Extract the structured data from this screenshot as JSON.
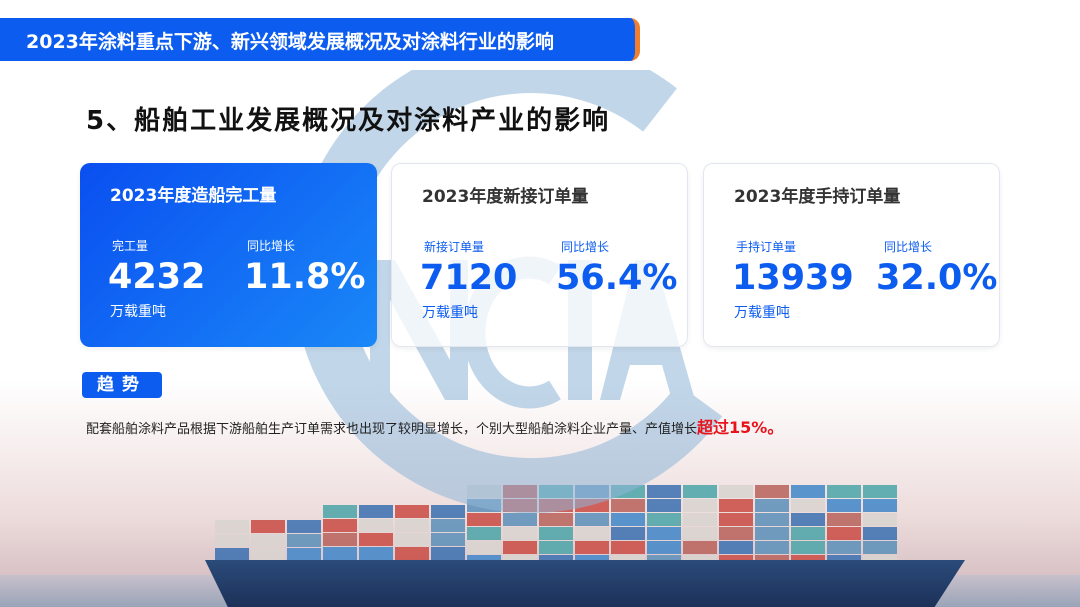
{
  "header": {
    "banner": "2023年涂料重点下游、新兴领域发展概况及对涂料行业的影响"
  },
  "page_title": "5、船舶工业发展概况及对涂料产业的影响",
  "logo": {
    "text": "NCIA",
    "color": "#8fb6d8"
  },
  "cards": [
    {
      "title": "2023年度造船完工量",
      "label1": "完工量",
      "value1": "4232",
      "unit": "万载重吨",
      "label2": "同比增长",
      "value2": "11.8%"
    },
    {
      "title": "2023年度新接订单量",
      "label1": "新接订单量",
      "value1": "7120",
      "unit": "万载重吨",
      "label2": "同比增长",
      "value2": "56.4%"
    },
    {
      "title": "2023年度手持订单量",
      "label1": "手持订单量",
      "value1": "13939",
      "unit": "万载重吨",
      "label2": "同比增长",
      "value2": "32.0%"
    }
  ],
  "trend": {
    "tag": "趋势",
    "text": "配套船舶涂料产品根据下游船舶生产订单需求也出现了较明显增长，个别大型船舶涂料企业产量、产值增长",
    "highlight": "超过15%。"
  },
  "colors": {
    "accent": "#0c5cf0",
    "highlight": "#e8141c",
    "banner_edge": "#f07f2e"
  }
}
